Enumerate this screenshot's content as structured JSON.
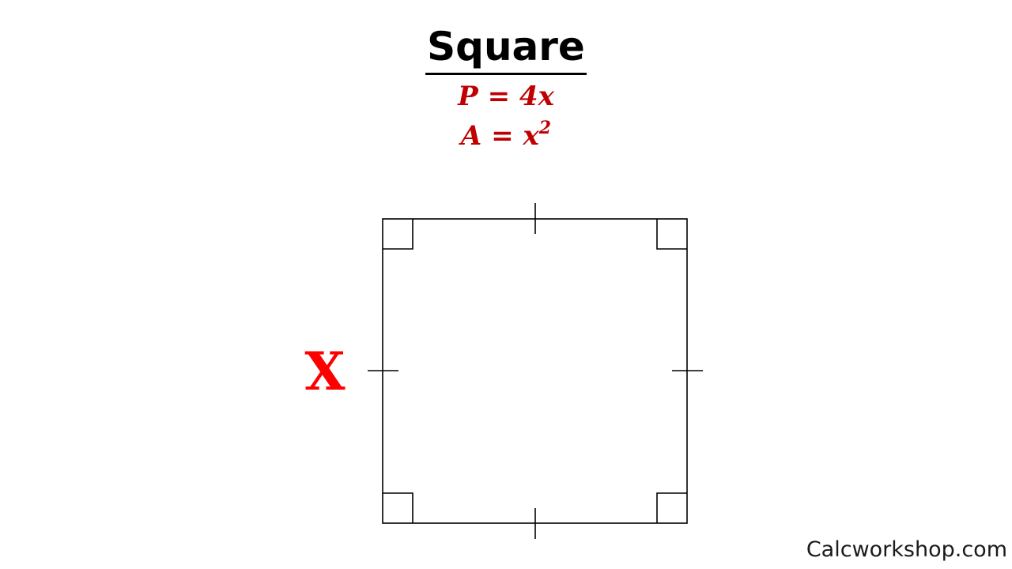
{
  "title": "Square",
  "formulas": {
    "perimeter": {
      "lhs": "P",
      "op": "=",
      "rhs": "4x"
    },
    "area": {
      "lhs": "A",
      "op": "=",
      "base": "x",
      "exponent": "2"
    }
  },
  "side_label": "X",
  "watermark": "Calcworkshop.com",
  "colors": {
    "formula": "#c00000",
    "side_label": "#ff0000",
    "lines": "#000000"
  }
}
